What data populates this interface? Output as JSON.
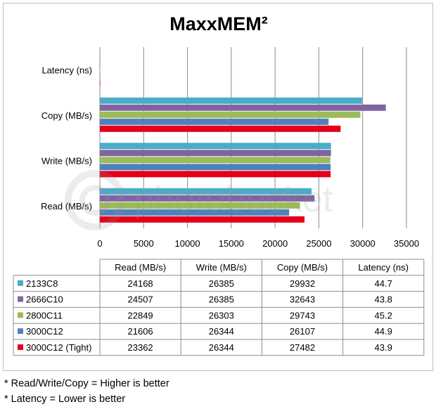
{
  "chart_data": {
    "type": "bar",
    "orientation": "horizontal",
    "title": "MaxxMEM²",
    "categories": [
      "Latency (ns)",
      "Copy (MB/s)",
      "Write (MB/s)",
      "Read (MB/s)"
    ],
    "xlim": [
      0,
      35000
    ],
    "xticks": [
      0,
      5000,
      10000,
      15000,
      20000,
      25000,
      30000,
      35000
    ],
    "grid": true,
    "series": [
      {
        "name": "2133C8",
        "color": "#4bacc6",
        "values": {
          "Read (MB/s)": 24168,
          "Write (MB/s)": 26385,
          "Copy (MB/s)": 29932,
          "Latency (ns)": 44.7
        }
      },
      {
        "name": "2666C10",
        "color": "#8064a2",
        "values": {
          "Read (MB/s)": 24507,
          "Write (MB/s)": 26385,
          "Copy (MB/s)": 32643,
          "Latency (ns)": 43.8
        }
      },
      {
        "name": "2800C11",
        "color": "#9bbb59",
        "values": {
          "Read (MB/s)": 22849,
          "Write (MB/s)": 26303,
          "Copy (MB/s)": 29743,
          "Latency (ns)": 45.2
        }
      },
      {
        "name": "3000C12",
        "color": "#4f81bd",
        "values": {
          "Read (MB/s)": 21606,
          "Write (MB/s)": 26344,
          "Copy (MB/s)": 26107,
          "Latency (ns)": 44.9
        }
      },
      {
        "name": "3000C12 (Tight)",
        "color": "#e3001b",
        "values": {
          "Read (MB/s)": 23362,
          "Write (MB/s)": 26344,
          "Copy (MB/s)": 27482,
          "Latency (ns)": 43.9
        }
      }
    ],
    "table": {
      "columns": [
        "Read (MB/s)",
        "Write (MB/s)",
        "Copy (MB/s)",
        "Latency (ns)"
      ],
      "rows": [
        [
          "24168",
          "26385",
          "29932",
          "44.7"
        ],
        [
          "24507",
          "26385",
          "32643",
          "43.8"
        ],
        [
          "22849",
          "26303",
          "29743",
          "45.2"
        ],
        [
          "21606",
          "26344",
          "26107",
          "44.9"
        ],
        [
          "23362",
          "26344",
          "27482",
          "43.9"
        ]
      ]
    }
  },
  "footnotes": [
    "* Read/Write/Copy = Higher is better",
    "* Latency = Lower is better"
  ],
  "watermark_text": "photobucket"
}
